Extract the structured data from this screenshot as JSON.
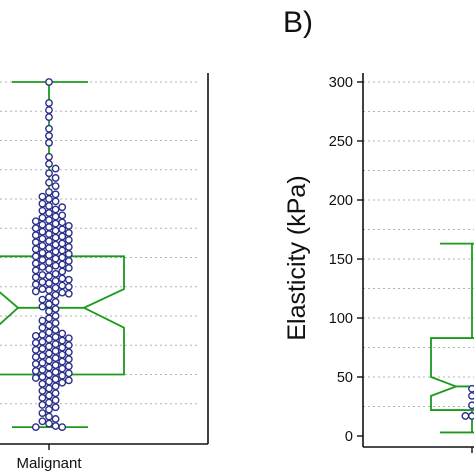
{
  "chart_data": [
    {
      "type": "box",
      "panel_label": "",
      "categories": [
        "Malignant"
      ],
      "ylabel": "",
      "ylim": [
        0,
        300
      ],
      "box": {
        "whisker_low": 5,
        "q1": 50,
        "median": 107,
        "q3": 151,
        "whisker_high": 300,
        "notch_low": 90,
        "notch_high": 123
      },
      "points": [
        300,
        282,
        276,
        270,
        260,
        254,
        248,
        236,
        230,
        226,
        222,
        218,
        214,
        211,
        206,
        204,
        202,
        200,
        198,
        196,
        194,
        193,
        191,
        190,
        188,
        186,
        185,
        184,
        182,
        181,
        180,
        179,
        178,
        177,
        176,
        175,
        174,
        173,
        172,
        171,
        170,
        169,
        168,
        167,
        166,
        165,
        164,
        163,
        162,
        161,
        160,
        159,
        158,
        157,
        156,
        155,
        154,
        153,
        152,
        151,
        150,
        149,
        148,
        147,
        146,
        145,
        144,
        143,
        142,
        141,
        140,
        139,
        138,
        136,
        135,
        134,
        133,
        132,
        131,
        130,
        129,
        128,
        127,
        126,
        125,
        124,
        123,
        122,
        121,
        120,
        119,
        118,
        116,
        114,
        112,
        110,
        108,
        106,
        104,
        100,
        98,
        96,
        94,
        92,
        90,
        88,
        86,
        85,
        84,
        83,
        82,
        81,
        80,
        79,
        78,
        77,
        76,
        75,
        74,
        73,
        72,
        71,
        70,
        69,
        68,
        67,
        66,
        65,
        64,
        63,
        62,
        61,
        60,
        59,
        58,
        57,
        56,
        55,
        54,
        53,
        52,
        51,
        50,
        49,
        48,
        47,
        46,
        45,
        44,
        43,
        42,
        40,
        38,
        36,
        34,
        32,
        30,
        28,
        26,
        24,
        22,
        20,
        17,
        14,
        12,
        10,
        8,
        6,
        5,
        5
      ]
    },
    {
      "type": "box",
      "panel_label": "B)",
      "categories": [
        ""
      ],
      "ylabel": "Elasticity (kPa)",
      "ylim": [
        0,
        300
      ],
      "yticks": [
        0,
        50,
        100,
        150,
        200,
        250,
        300
      ],
      "box": {
        "whisker_low": 3,
        "q1": 22,
        "median": 42,
        "q3": 83,
        "whisker_high": 163,
        "notch_low": 34,
        "notch_high": 50
      },
      "points": [
        17,
        17,
        17,
        22,
        26,
        30,
        34,
        36,
        40
      ]
    }
  ]
}
